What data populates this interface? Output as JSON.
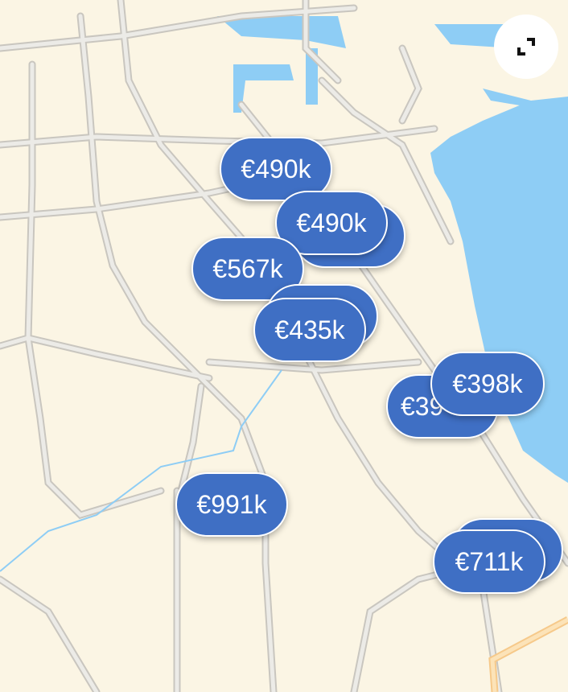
{
  "colors": {
    "land": "#fbf5e4",
    "water": "#8ecdf5",
    "road": "#d9d6cf",
    "road_edge": "#c3c0b9",
    "major_road": "#f6c98a",
    "pin": "#3f6fc4",
    "pin_text": "#ffffff"
  },
  "expand_button": {
    "icon": "expand-icon"
  },
  "pins": [
    {
      "label": "€490k"
    },
    {
      "label": ""
    },
    {
      "label": "€490k"
    },
    {
      "label": "€567k"
    },
    {
      "label": ""
    },
    {
      "label": "€435k"
    },
    {
      "label": "€39"
    },
    {
      "label": "€398k"
    },
    {
      "label": "€991k"
    },
    {
      "label": ""
    },
    {
      "label": "€711k"
    }
  ]
}
